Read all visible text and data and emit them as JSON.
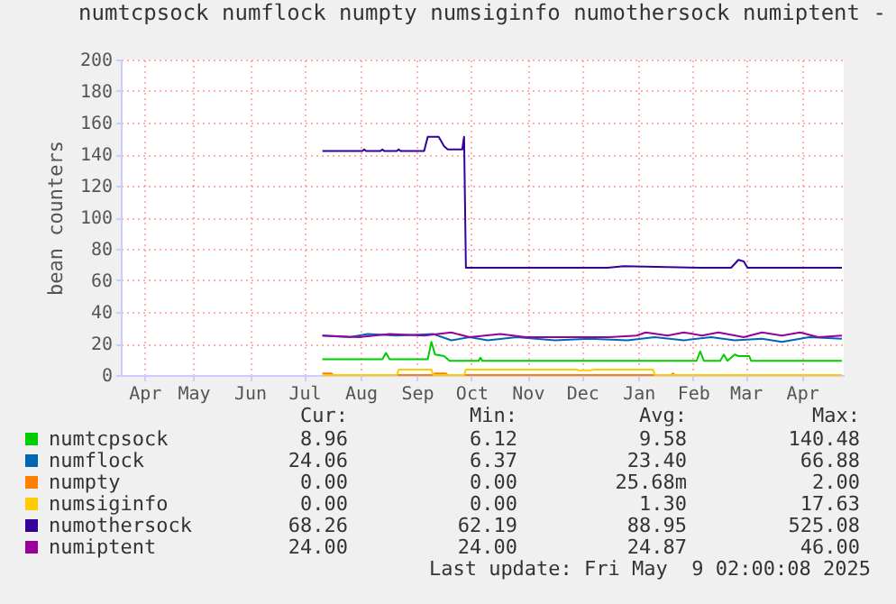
{
  "chart_data": {
    "type": "line",
    "title": "numtcpsock numflock numpty numsiginfo numothersock numiptent -",
    "ylabel": "bean counters",
    "xlim": [
      "2024-04-06",
      "2025-05-09"
    ],
    "xticks": [
      {
        "value": "2024-04-19",
        "label": "Apr"
      },
      {
        "value": "2024-05-16",
        "label": "May"
      },
      {
        "value": "2024-06-16",
        "label": "Jun"
      },
      {
        "value": "2024-07-16",
        "label": "Jul"
      },
      {
        "value": "2024-08-16",
        "label": "Aug"
      },
      {
        "value": "2024-09-16",
        "label": "Sep"
      },
      {
        "value": "2024-10-16",
        "label": "Oct"
      },
      {
        "value": "2024-11-16",
        "label": "Nov"
      },
      {
        "value": "2024-12-16",
        "label": "Dec"
      },
      {
        "value": "2025-01-16",
        "label": "Jan"
      },
      {
        "value": "2025-02-15",
        "label": "Feb"
      },
      {
        "value": "2025-03-16",
        "label": "Mar"
      },
      {
        "value": "2025-04-16",
        "label": "Apr"
      }
    ],
    "ylim": [
      0,
      200
    ],
    "yticks": [
      0,
      20,
      40,
      60,
      80,
      100,
      120,
      140,
      160,
      180,
      200
    ],
    "grid": true,
    "legend": "bottom",
    "series": [
      {
        "name": "numtcpsock",
        "color": "#00cc00",
        "x": [
          "2024-07-26",
          "2024-08-28",
          "2024-08-30",
          "2024-09-01",
          "2024-09-22",
          "2024-09-24",
          "2024-09-26",
          "2024-10-01",
          "2024-10-04",
          "2024-10-20",
          "2024-10-21",
          "2024-10-22",
          "2025-02-17",
          "2025-02-19",
          "2025-02-21",
          "2025-03-02",
          "2025-03-04",
          "2025-03-06",
          "2025-03-10",
          "2025-03-12",
          "2025-03-18",
          "2025-03-19",
          "2025-05-08"
        ],
        "values": [
          10,
          10,
          14,
          10,
          10,
          21,
          13,
          12,
          9,
          9,
          11,
          9,
          9,
          15,
          9,
          9,
          13,
          9,
          13,
          12,
          12,
          9,
          9
        ]
      },
      {
        "name": "numflock",
        "color": "#0066b3",
        "x": [
          "2024-07-26",
          "2024-08-10",
          "2024-08-20",
          "2024-09-05",
          "2024-09-25",
          "2024-10-05",
          "2024-10-15",
          "2024-10-25",
          "2024-11-10",
          "2024-12-01",
          "2024-12-20",
          "2025-01-10",
          "2025-01-25",
          "2025-02-10",
          "2025-02-25",
          "2025-03-10",
          "2025-03-25",
          "2025-04-05",
          "2025-04-20",
          "2025-05-08"
        ],
        "values": [
          25,
          24,
          26,
          25,
          26,
          22,
          24,
          22,
          24,
          22,
          23,
          22,
          24,
          22,
          24,
          22,
          23,
          21,
          24,
          23
        ]
      },
      {
        "name": "numpty",
        "color": "#ff8000",
        "x": [
          "2024-07-26",
          "2024-07-31",
          "2024-08-01",
          "2024-09-25",
          "2024-09-26",
          "2024-10-02",
          "2024-10-03",
          "2025-02-03",
          "2025-02-04",
          "2025-02-05",
          "2025-05-08"
        ],
        "values": [
          1,
          1,
          0,
          0,
          1,
          1,
          0,
          0,
          1,
          0,
          0
        ]
      },
      {
        "name": "numsiginfo",
        "color": "#ffcc00",
        "x": [
          "2024-07-26",
          "2024-09-05",
          "2024-09-06",
          "2024-09-24",
          "2024-09-25",
          "2024-10-12",
          "2024-10-13",
          "2024-12-13",
          "2024-12-14",
          "2024-12-21",
          "2024-12-22",
          "2025-01-24",
          "2025-01-25",
          "2025-05-08"
        ],
        "values": [
          0,
          0,
          3.5,
          3.5,
          0,
          0,
          3.5,
          3.5,
          3,
          3,
          3.5,
          3.5,
          0,
          0
        ]
      },
      {
        "name": "numothersock",
        "color": "#330099",
        "x": [
          "2024-07-26",
          "2024-08-17",
          "2024-08-18",
          "2024-08-19",
          "2024-08-27",
          "2024-08-28",
          "2024-08-29",
          "2024-09-05",
          "2024-09-06",
          "2024-09-07",
          "2024-09-20",
          "2024-09-22",
          "2024-09-28",
          "2024-10-01",
          "2024-10-03",
          "2024-10-11",
          "2024-10-12",
          "2024-10-13",
          "2024-12-30",
          "2025-01-08",
          "2025-02-20",
          "2025-03-08",
          "2025-03-12",
          "2025-03-15",
          "2025-03-17",
          "2025-05-08"
        ],
        "values": [
          142,
          142,
          143,
          142,
          142,
          143,
          142,
          142,
          143,
          142,
          142,
          151,
          151,
          145,
          143,
          143,
          151,
          68,
          68,
          69,
          68,
          68,
          73,
          72,
          68,
          68
        ]
      },
      {
        "name": "numiptent",
        "color": "#990099",
        "x": [
          "2024-07-26",
          "2024-08-15",
          "2024-09-01",
          "2024-09-20",
          "2024-10-05",
          "2024-10-15",
          "2024-11-01",
          "2024-11-15",
          "2024-12-31",
          "2025-01-15",
          "2025-01-20",
          "2025-02-01",
          "2025-02-10",
          "2025-02-20",
          "2025-03-01",
          "2025-03-15",
          "2025-03-25",
          "2025-04-05",
          "2025-04-15",
          "2025-04-25",
          "2025-05-08"
        ],
        "values": [
          25,
          24,
          26,
          25,
          27,
          24,
          26,
          24,
          24,
          25,
          27,
          25,
          27,
          25,
          27,
          24,
          27,
          25,
          27,
          24,
          25
        ]
      }
    ],
    "annotations": [
      "Cur:",
      "Min:",
      "Avg:",
      "Max:",
      "8.96",
      "6.12",
      "9.58",
      "140.48",
      "24.06",
      "6.37",
      "23.40",
      "66.88",
      "0.00",
      "0.00",
      "25.68m",
      "2.00",
      "0.00",
      "0.00",
      "1.30",
      "17.63",
      "68.26",
      "62.19",
      "88.95",
      "525.08",
      "24.00",
      "24.00",
      "24.87",
      "46.00",
      "Last update: Fri May  9 02:00:08 2025"
    ]
  }
}
